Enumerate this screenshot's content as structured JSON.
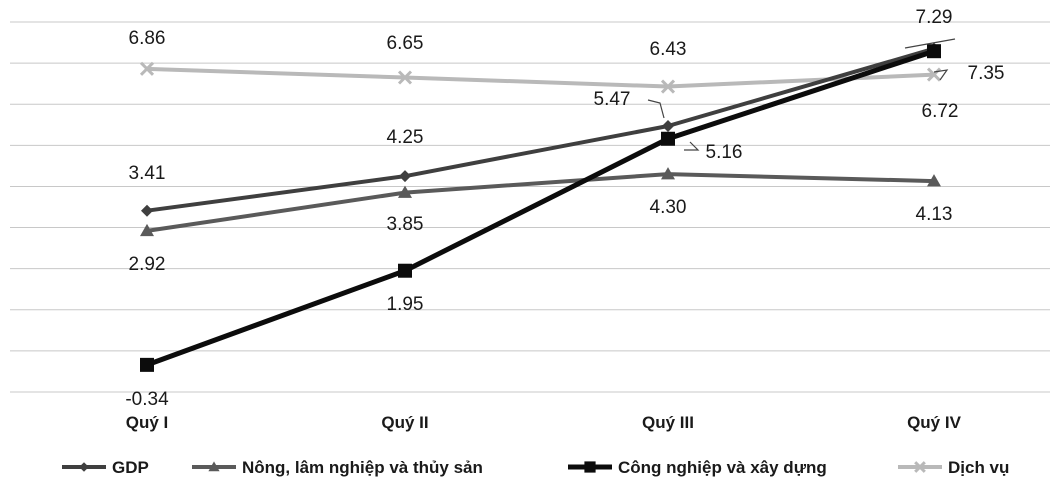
{
  "chart_data": {
    "type": "line",
    "title": "",
    "xlabel": "",
    "ylabel": "",
    "categories": [
      "Quý I",
      "Quý II",
      "Quý III",
      "Quý IV"
    ],
    "ylim": [
      -1,
      8
    ],
    "grid": true,
    "legend_position": "bottom",
    "series": [
      {
        "name": "GDP",
        "values": [
          3.41,
          4.25,
          5.47,
          7.35
        ],
        "color": "#3f3f3f",
        "marker": "diamond",
        "stroke_width": 4,
        "labels": [
          "3.41",
          "4.25",
          "5.47",
          "7.35"
        ]
      },
      {
        "name": "Nông, lâm nghiệp và thủy sản",
        "values": [
          2.92,
          3.85,
          4.3,
          4.13
        ],
        "color": "#5a5a5a",
        "marker": "triangle",
        "stroke_width": 4,
        "labels": [
          "2.92",
          "3.85",
          "4.30",
          "4.13"
        ]
      },
      {
        "name": "Công nghiệp và xây dựng",
        "values": [
          -0.34,
          1.95,
          5.16,
          7.29
        ],
        "color": "#0c0c0c",
        "marker": "square",
        "stroke_width": 5,
        "labels": [
          "-0.34",
          "1.95",
          "5.16",
          "7.29"
        ]
      },
      {
        "name": "Dịch vụ",
        "values": [
          6.86,
          6.65,
          6.43,
          6.72
        ],
        "color": "#b9b9b9",
        "marker": "cross",
        "stroke_width": 4,
        "labels": [
          "6.86",
          "6.65",
          "6.43",
          "6.72"
        ]
      }
    ]
  }
}
